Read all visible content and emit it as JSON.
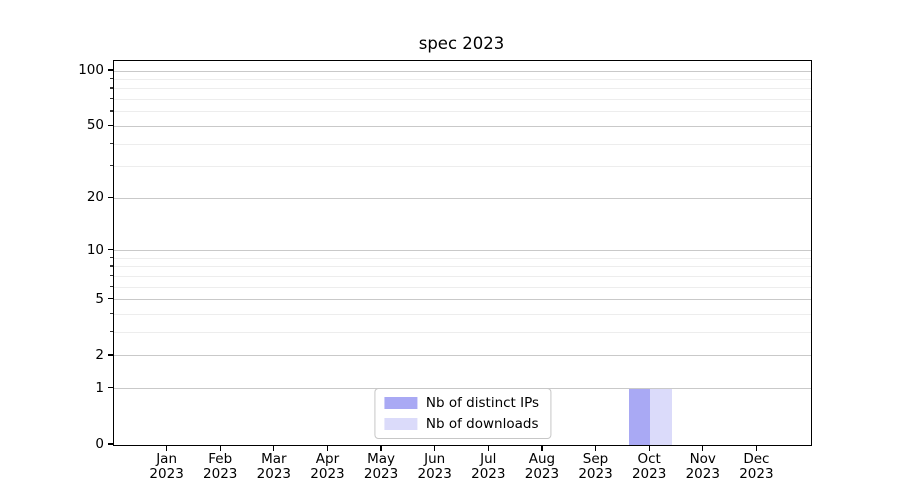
{
  "chart_data": {
    "type": "bar",
    "title": "spec 2023",
    "categories": [
      "Jan",
      "Feb",
      "Mar",
      "Apr",
      "May",
      "Jun",
      "Jul",
      "Aug",
      "Sep",
      "Oct",
      "Nov",
      "Dec"
    ],
    "category_sublabel": "2023",
    "series": [
      {
        "name": "Nb of distinct IPs",
        "color": "#a9a9f4",
        "values": [
          0,
          0,
          0,
          0,
          0,
          0,
          0,
          0,
          0,
          1,
          0,
          0
        ]
      },
      {
        "name": "Nb of downloads",
        "color": "#dbdbfa",
        "values": [
          0,
          0,
          0,
          0,
          0,
          0,
          0,
          0,
          0,
          1,
          0,
          0
        ]
      }
    ],
    "yscale": "log1p",
    "ylim": [
      0,
      113
    ],
    "yticks": [
      0,
      1,
      2,
      5,
      10,
      20,
      50,
      100
    ],
    "yticks_minor": [
      3,
      4,
      6,
      7,
      8,
      9,
      30,
      40,
      60,
      70,
      80,
      90
    ],
    "xlabel": "",
    "ylabel": "",
    "grid": true,
    "legend_position": "lower center"
  }
}
